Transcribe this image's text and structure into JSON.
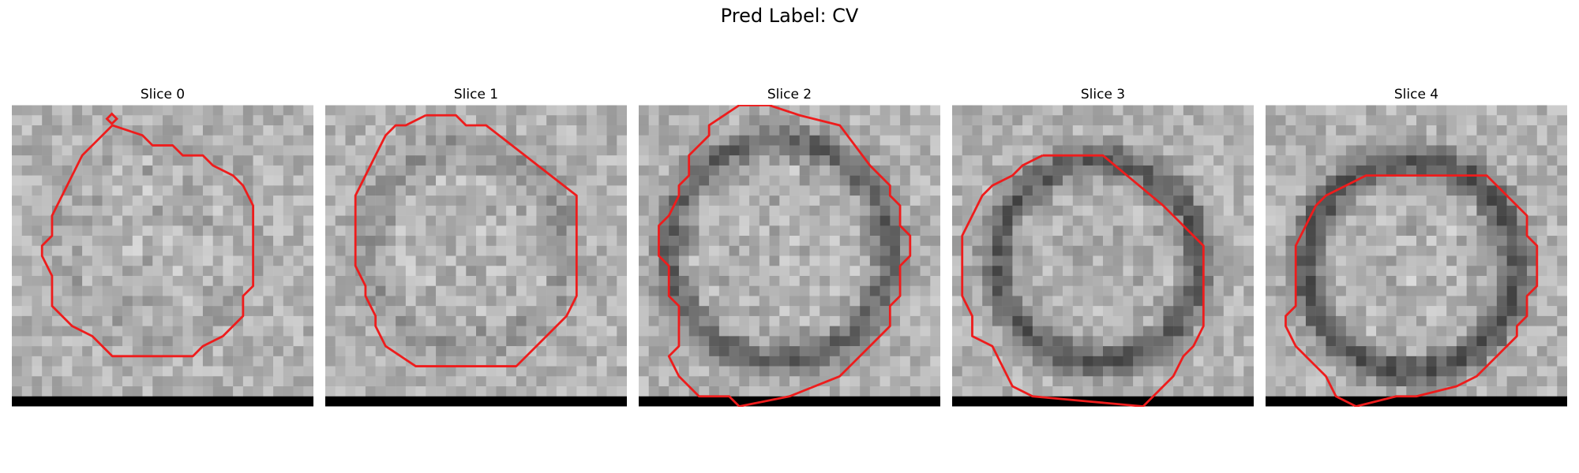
{
  "figure": {
    "title": "Pred Label: CV"
  },
  "panels": [
    {
      "title": "Slice 0",
      "outline_color": "#ee1c1c"
    },
    {
      "title": "Slice 1",
      "outline_color": "#ee1c1c"
    },
    {
      "title": "Slice 2",
      "outline_color": "#ee1c1c"
    },
    {
      "title": "Slice 3",
      "outline_color": "#ee1c1c"
    },
    {
      "title": "Slice 4",
      "outline_color": "#ee1c1c"
    }
  ]
}
